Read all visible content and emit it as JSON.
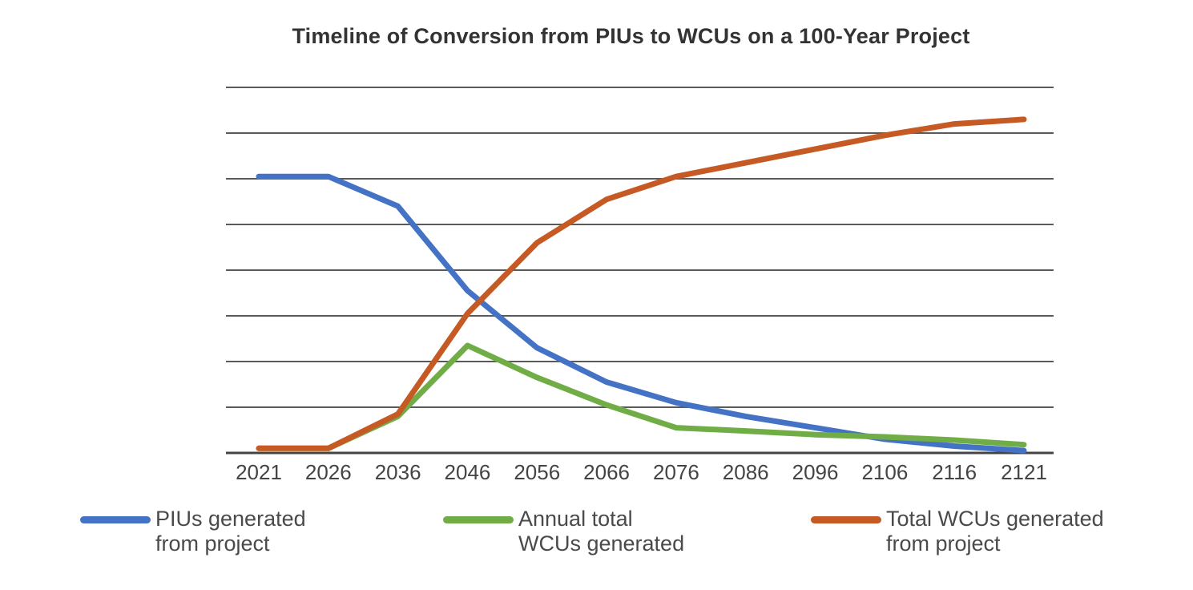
{
  "chart_data": {
    "type": "line",
    "title": "Timeline of Conversion from PIUs to WCUs on a 100-Year Project",
    "xlabel": "",
    "ylabel": "",
    "x": [
      "2021",
      "2026",
      "2036",
      "2046",
      "2056",
      "2066",
      "2076",
      "2086",
      "2096",
      "2106",
      "2116",
      "2121"
    ],
    "ylim": [
      0,
      8
    ],
    "gridlines": [
      0,
      1,
      2,
      3,
      4,
      5,
      6,
      7,
      8
    ],
    "grid": "horizontal",
    "y_tick_labels": false,
    "legend_position": "bottom",
    "series": [
      {
        "name": "PIUs generated from project",
        "legend_lines": [
          "PIUs generated",
          "from project"
        ],
        "color": "#4472c4",
        "values": [
          6.05,
          6.05,
          5.4,
          3.55,
          2.3,
          1.55,
          1.1,
          0.8,
          0.55,
          0.3,
          0.15,
          0.05
        ]
      },
      {
        "name": "Annual total WCUs generated",
        "legend_lines": [
          "Annual total",
          "WCUs generated"
        ],
        "color": "#70ad47",
        "values": [
          0.1,
          0.1,
          0.8,
          2.35,
          1.65,
          1.05,
          0.55,
          0.48,
          0.4,
          0.35,
          0.28,
          0.18
        ]
      },
      {
        "name": "Total WCUs generated from project",
        "legend_lines": [
          "Total WCUs generated",
          "from project"
        ],
        "color": "#c55a24",
        "values": [
          0.1,
          0.1,
          0.85,
          3.05,
          4.6,
          5.55,
          6.05,
          6.35,
          6.65,
          6.95,
          7.2,
          7.3
        ]
      }
    ]
  }
}
